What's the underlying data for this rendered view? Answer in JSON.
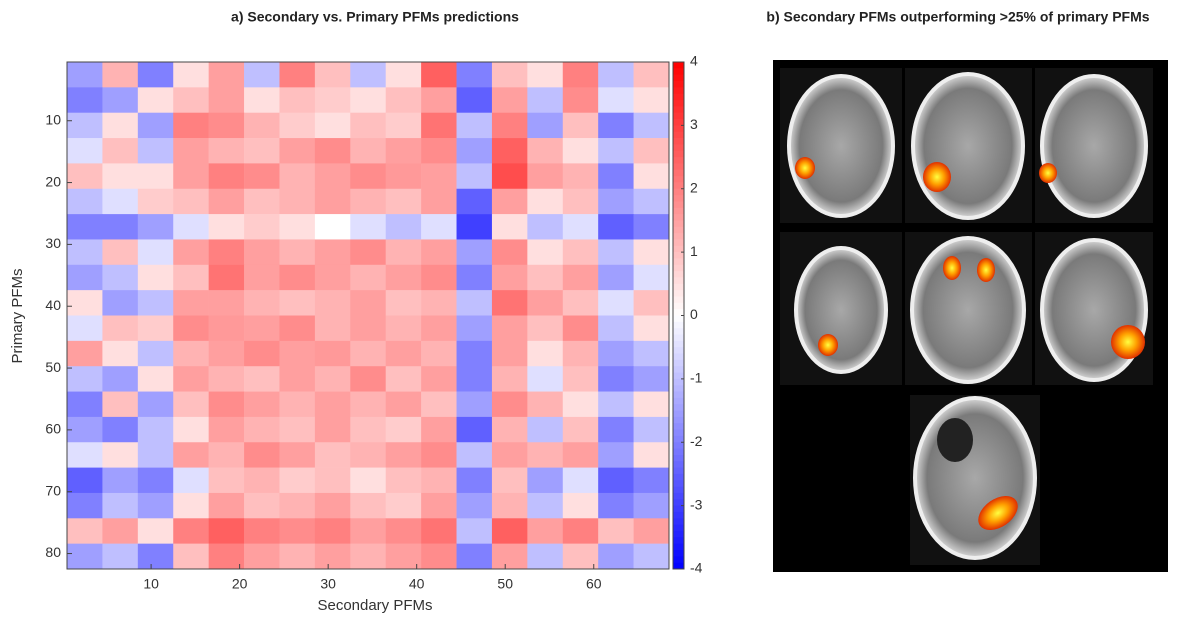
{
  "chart_data": {
    "type": "heatmap",
    "title": "a) Secondary vs. Primary PFMs predictions",
    "xlabel": "Secondary PFMs",
    "ylabel": "Primary PFMs",
    "xlim": [
      0.5,
      68.5
    ],
    "ylim": [
      0.5,
      82.5
    ],
    "xticks": [
      10,
      20,
      30,
      40,
      50,
      60
    ],
    "yticks": [
      10,
      20,
      30,
      40,
      50,
      60,
      70,
      80
    ],
    "colorbar_lim": [
      -4,
      4
    ],
    "colorbar_ticks": [
      4,
      3,
      2,
      1,
      0,
      -1,
      -2,
      -3,
      -4
    ],
    "colors": {
      "negative": "#0000ff",
      "zero": "#ffffff",
      "positive": "#ff0000"
    },
    "z": [
      [
        -1.5,
        1.2,
        -2,
        0.5,
        1.5,
        -1,
        2,
        1,
        -1,
        0.5,
        2.5,
        -2,
        1,
        0.5,
        2,
        -1,
        1
      ],
      [
        -2,
        -1.5,
        0.5,
        1,
        1.5,
        0.5,
        1,
        0.8,
        0.5,
        1,
        1.5,
        -2.5,
        1.5,
        -1,
        1.8,
        -0.5,
        0.5
      ],
      [
        -1,
        0.5,
        -1.5,
        2,
        1.8,
        1.2,
        0.8,
        0.5,
        1,
        0.8,
        2.2,
        -1,
        2,
        -1.5,
        1,
        -2,
        -1
      ],
      [
        -0.5,
        1,
        -1,
        1.5,
        1.2,
        1,
        1.5,
        1.8,
        1.2,
        1.5,
        1.8,
        -1.5,
        2.5,
        1.2,
        0.5,
        -1,
        1
      ],
      [
        1,
        0.5,
        0.5,
        1.5,
        2,
        1.8,
        1.2,
        1.5,
        1.8,
        1.6,
        1.5,
        -1,
        2.8,
        1.5,
        1.2,
        -2,
        0.5
      ],
      [
        -1,
        -0.5,
        0.8,
        1,
        1.5,
        1,
        1.2,
        1.5,
        1.2,
        1,
        1.5,
        -2.5,
        1.5,
        0.5,
        1,
        -1.5,
        -1
      ],
      [
        -2,
        -2,
        -1.5,
        -0.5,
        0.5,
        0.8,
        0.5,
        0,
        -0.5,
        -1,
        -0.5,
        -3,
        0.5,
        -1,
        -0.5,
        -2.5,
        -2
      ],
      [
        -1,
        1,
        -0.5,
        1.5,
        2,
        1.5,
        1.2,
        1.5,
        1.8,
        1.2,
        1.5,
        -1.5,
        1.8,
        0.5,
        1,
        -1,
        0.5
      ],
      [
        -1.5,
        -1,
        0.5,
        1,
        2.2,
        1.5,
        1.8,
        1.5,
        1.2,
        1.5,
        1.8,
        -2,
        1.5,
        1,
        1.5,
        -1.5,
        -0.5
      ],
      [
        0.5,
        -1.5,
        -1,
        1.5,
        1.5,
        1.2,
        1,
        1.2,
        1.5,
        1,
        1.2,
        -1,
        2.2,
        1.5,
        1,
        -0.5,
        1
      ],
      [
        -0.5,
        1,
        0.8,
        1.8,
        1.6,
        1.5,
        1.8,
        1.2,
        1.5,
        1.2,
        1.5,
        -1.5,
        1.5,
        1,
        1.8,
        -1,
        0.5
      ],
      [
        1.5,
        0.5,
        -1,
        1.2,
        1.5,
        1.8,
        1.5,
        1.6,
        1.2,
        1.5,
        1.2,
        -2,
        1.5,
        0.5,
        1.2,
        -1.5,
        -1
      ],
      [
        -1,
        -1.5,
        0.5,
        1.5,
        1.2,
        1,
        1.5,
        1.2,
        1.8,
        1,
        1.5,
        -2,
        1.2,
        -0.5,
        1,
        -2,
        -1.5
      ],
      [
        -2,
        1,
        -1.5,
        1,
        1.8,
        1.5,
        1.2,
        1.5,
        1.2,
        1.5,
        1,
        -1.5,
        1.8,
        1.2,
        0.5,
        -1,
        0.5
      ],
      [
        -1.5,
        -2,
        -1,
        0.5,
        1.5,
        1.2,
        1,
        1.5,
        1,
        0.8,
        1.5,
        -2.5,
        1.2,
        -1,
        1,
        -2,
        -1
      ],
      [
        -0.5,
        0.5,
        -1,
        1.5,
        1.2,
        1.8,
        1.5,
        1,
        1.2,
        1.5,
        1.8,
        -1,
        1.5,
        1.2,
        1.5,
        -1.5,
        0.5
      ],
      [
        -2.5,
        -1.5,
        -2,
        -0.5,
        1,
        1.2,
        0.8,
        1,
        0.5,
        1,
        1.2,
        -2,
        1,
        -1.5,
        -0.5,
        -2.5,
        -2
      ],
      [
        -2,
        -1,
        -1.5,
        0.5,
        1.5,
        1,
        1.2,
        1.5,
        1,
        0.8,
        1.5,
        -1.5,
        1.2,
        -1,
        0.5,
        -2,
        -1.5
      ],
      [
        1,
        1.5,
        0.5,
        2,
        2.5,
        2,
        1.8,
        2,
        1.5,
        1.8,
        2.2,
        -1,
        2.5,
        1.5,
        2,
        1,
        1.5
      ],
      [
        -1.5,
        -1,
        -2,
        1,
        2,
        1.5,
        1.2,
        1.5,
        1.2,
        1.5,
        1.8,
        -2,
        1.5,
        -1,
        1,
        -1.5,
        -1
      ]
    ]
  },
  "panel_b": {
    "title": "b)  Secondary PFMs outperforming >25% of primary PFMs"
  }
}
